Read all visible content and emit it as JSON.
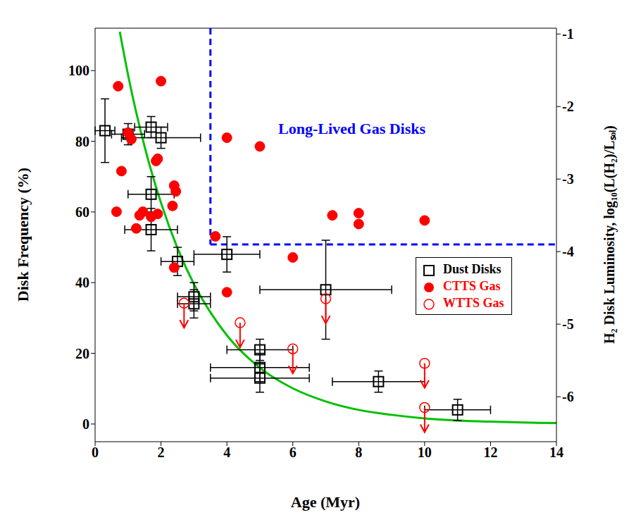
{
  "chart_data": {
    "type": "scatter",
    "x_label": "Age (Myr)",
    "y_label": "Disk Frequency (%)",
    "y2_label": "H₂ Disk Luminosity, log₁₀(L(H₂)/Lₛₒₗ)",
    "xlim": [
      0,
      14
    ],
    "xticks": [
      0,
      2,
      4,
      6,
      8,
      10,
      12,
      14
    ],
    "ylim": [
      -5,
      112
    ],
    "yticks": [
      0,
      20,
      40,
      60,
      80,
      100
    ],
    "y2lim": [
      -6.62,
      -0.92
    ],
    "y2ticks": [
      -1,
      -2,
      -3,
      -4,
      -5,
      -6
    ],
    "legend": "right",
    "annotation": "Long-Lived Gas Disks",
    "series": [
      {
        "name": "Dust Disks",
        "color": "#000000",
        "marker": "square",
        "x": [
          0.3,
          1.0,
          1.7,
          2.0,
          1.7,
          1.7,
          2.5,
          3.0,
          3.0,
          4.0,
          7.0,
          5.0,
          5.0,
          5.0,
          8.6,
          11.0
        ],
        "values": [
          83,
          82,
          84,
          81,
          65,
          55,
          46,
          36,
          34,
          48,
          38,
          21,
          16,
          13,
          12,
          4
        ],
        "y_error": [
          9,
          3,
          3,
          3,
          5,
          6,
          4,
          4,
          4,
          5,
          14,
          3,
          4,
          4,
          3,
          3
        ],
        "x_error": [
          0.3,
          0.5,
          0.5,
          1.2,
          0.7,
          0.8,
          0.5,
          0.5,
          0.5,
          1.0,
          2.0,
          1.0,
          1.5,
          1.5,
          1.4,
          1.0
        ]
      },
      {
        "name": "CTTS Gas",
        "color": "#ff0000",
        "marker": "circle",
        "axis": "y2",
        "x": [
          0.7,
          2.0,
          1.0,
          1.1,
          0.8,
          1.85,
          1.9,
          0.65,
          1.45,
          1.35,
          1.25,
          1.7,
          1.9,
          2.4,
          2.45,
          2.35,
          2.4,
          3.65,
          4.0,
          5.0,
          6.0,
          4.0,
          7.2,
          8.0,
          8.0,
          10.0
        ],
        "values": [
          -1.72,
          -1.65,
          -2.36,
          -2.45,
          -2.89,
          -2.75,
          -2.72,
          -3.45,
          -3.45,
          -3.5,
          -3.68,
          -3.52,
          -3.48,
          -3.09,
          -3.17,
          -3.37,
          -4.22,
          -3.79,
          -2.43,
          -2.55,
          -4.08,
          -4.56,
          -3.5,
          -3.47,
          -3.62,
          -3.57
        ]
      },
      {
        "name": "WTTS Gas",
        "color": "#ff0000",
        "marker": "upper_limit",
        "axis": "y2",
        "x": [
          2.7,
          4.4,
          6.0,
          7.0,
          10.0,
          10.0
        ],
        "values": [
          -4.71,
          -4.98,
          -5.34,
          -4.65,
          -5.54,
          -6.15
        ]
      }
    ],
    "fit_curve": {
      "type": "line",
      "color": "#00c000",
      "x": [
        0.75,
        1,
        1.5,
        2,
        2.5,
        3,
        3.5,
        4,
        5,
        6,
        7,
        8,
        9,
        10,
        11,
        12,
        13,
        14
      ],
      "values": [
        111,
        98.8,
        78.6,
        62.6,
        49.8,
        39.6,
        31.6,
        25.1,
        15.9,
        10.1,
        6.4,
        4.0,
        2.6,
        1.6,
        1.0,
        0.66,
        0.42,
        0.26
      ]
    },
    "gas_disk_boundary": {
      "color": "#0000ff",
      "line_style": "dashed",
      "x": 3.5,
      "y2": -3.9
    }
  }
}
